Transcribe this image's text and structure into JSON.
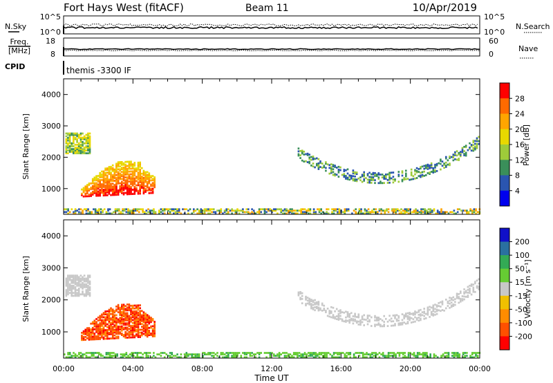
{
  "header": {
    "station": "Fort Hays West (fitACF)",
    "beam": "Beam 11",
    "date": "10/Apr/2019"
  },
  "strip_panels": {
    "nsky_label": "N.Sky",
    "nsky_ticks": [
      "10^5",
      "10^0"
    ],
    "nsearch_label": "N.Search",
    "nsearch_ticks": [
      "10^5",
      "10^0"
    ],
    "freq_label_top": "Freq.",
    "freq_label_unit": "[MHz]",
    "freq_ticks": [
      "18",
      "8"
    ],
    "nave_label": "Nave",
    "nave_ticks": [
      "60",
      "0"
    ],
    "cpid_label": "CPID",
    "cpid_text": "themis -3300 IF"
  },
  "axes": {
    "ylabel": "Slant Range [km]",
    "xlabel": "Time UT",
    "y_ticks": [
      "4000",
      "3000",
      "2000",
      "1000"
    ],
    "x_ticks": [
      "00:00",
      "04:00",
      "08:00",
      "12:00",
      "16:00",
      "20:00",
      "00:00"
    ]
  },
  "colorbars": {
    "power": {
      "label": "Power [dB]",
      "ticks": [
        "28",
        "24",
        "20",
        "16",
        "12",
        "8",
        "4"
      ],
      "colors": [
        "#ff0000",
        "#ff6a00",
        "#ffa500",
        "#e8d800",
        "#9ecb3a",
        "#3a8f5a",
        "#2a55b0",
        "#0000ee"
      ]
    },
    "velocity": {
      "label": "Velocity [m s⁻¹]",
      "ticks": [
        "200",
        "100",
        "50",
        "15",
        "-15",
        "-50",
        "-100",
        "-200"
      ],
      "colors": [
        "#1010c8",
        "#2a70a0",
        "#33aa55",
        "#66cc33",
        "#c8c8c8",
        "#f0c000",
        "#ff8c00",
        "#ff5000",
        "#ff0000"
      ]
    }
  },
  "chart_data": [
    {
      "type": "line",
      "title": "N.Sky / N.Search",
      "x_range": [
        0,
        24
      ],
      "y_ticks": [
        "10^0",
        "10^5"
      ],
      "series": []
    },
    {
      "type": "line",
      "title": "Freq. [MHz] / Nave",
      "x_range": [
        0,
        24
      ],
      "y_range_left": [
        8,
        18
      ],
      "y_range_right": [
        0,
        60
      ],
      "series": []
    },
    {
      "type": "heatmap",
      "parameter": "Power [dB]",
      "x_range": [
        0,
        24
      ],
      "ylim": [
        180,
        4500
      ],
      "color_range": [
        0,
        32
      ],
      "regions": [
        {
          "t": [
            0.1,
            1.5
          ],
          "r": [
            2100,
            2750
          ],
          "value_range": [
            8,
            20
          ]
        },
        {
          "t": [
            1.0,
            5.3
          ],
          "r": [
            700,
            1700
          ],
          "value_range": [
            12,
            30
          ]
        },
        {
          "t": [
            13.5,
            23.9
          ],
          "r": [
            1200,
            2500
          ],
          "value_range": [
            4,
            16
          ]
        },
        {
          "t": [
            0.0,
            24.0
          ],
          "r": [
            180,
            350
          ],
          "value_range": [
            4,
            24
          ]
        }
      ]
    },
    {
      "type": "heatmap",
      "parameter": "Velocity [m s^-1]",
      "x_range": [
        0,
        24
      ],
      "ylim": [
        180,
        4500
      ],
      "color_range": [
        -250,
        250
      ],
      "regions": [
        {
          "t": [
            0.1,
            1.5
          ],
          "r": [
            2100,
            2750
          ],
          "value_range": [
            -15,
            15
          ]
        },
        {
          "t": [
            1.0,
            5.3
          ],
          "r": [
            700,
            1700
          ],
          "value_range": [
            -250,
            -50
          ]
        },
        {
          "t": [
            13.5,
            23.9
          ],
          "r": [
            1200,
            2500
          ],
          "value_range": [
            -15,
            15
          ]
        },
        {
          "t": [
            0.0,
            24.0
          ],
          "r": [
            180,
            350
          ],
          "value_range": [
            15,
            60
          ]
        }
      ]
    }
  ]
}
